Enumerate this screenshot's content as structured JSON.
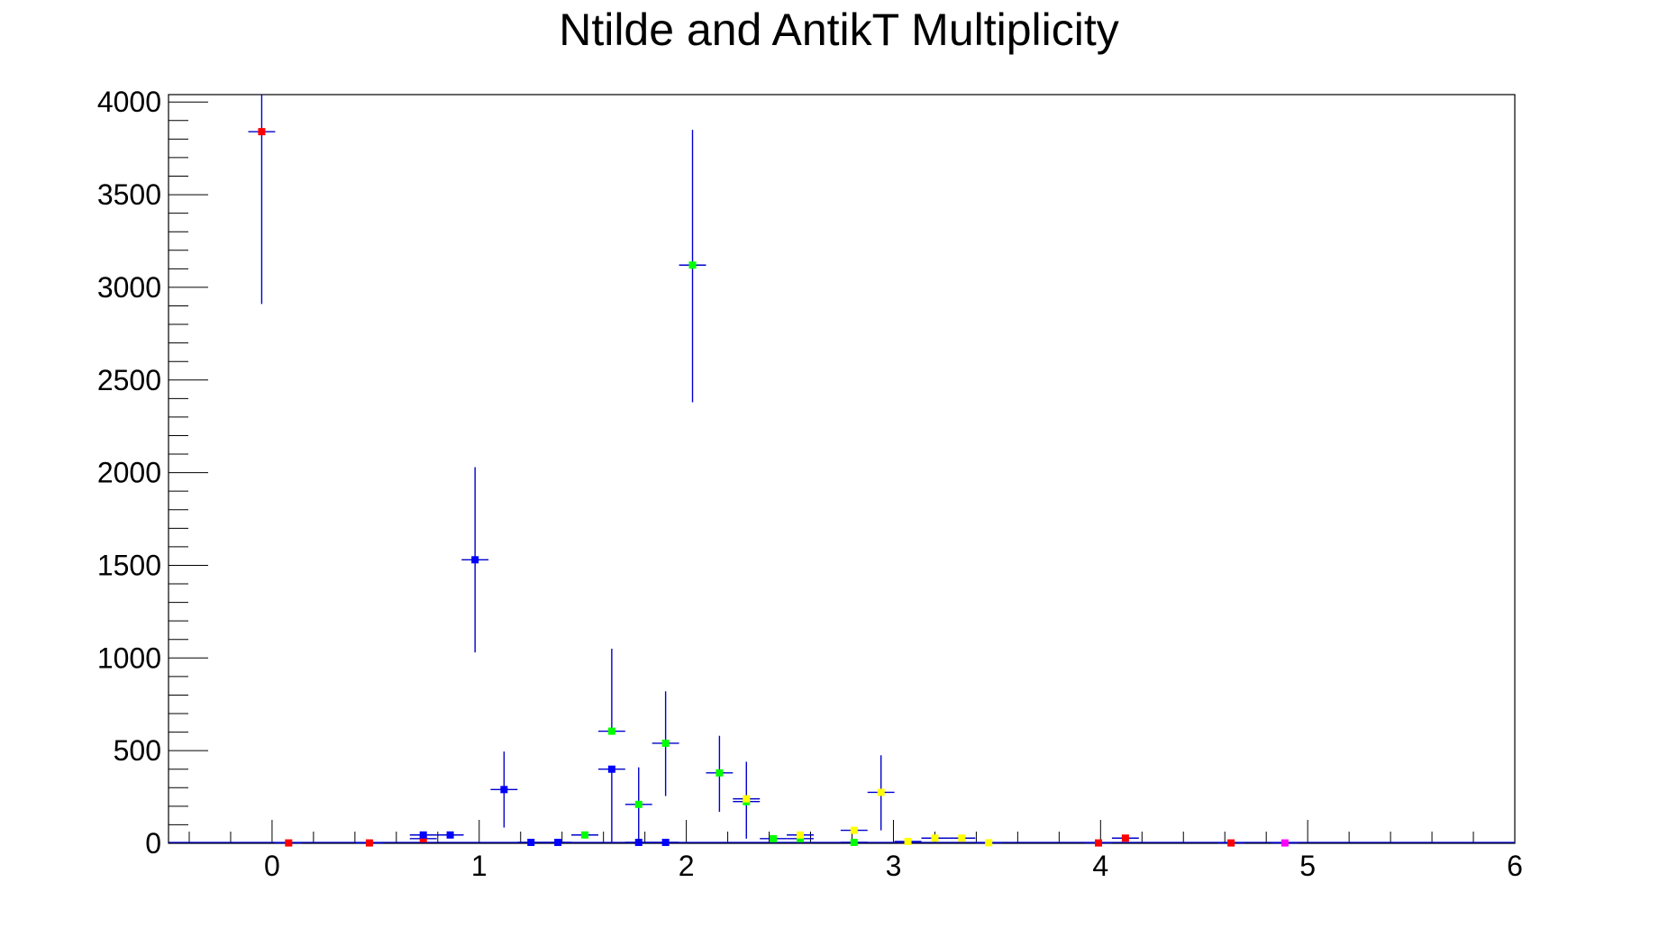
{
  "chart_data": {
    "type": "scatter",
    "title": "Ntilde and AntikT Multiplicity",
    "xlabel": "",
    "ylabel": "",
    "xlim": [
      -0.5,
      6
    ],
    "ylim": [
      0,
      4040
    ],
    "x_ticks": [
      0,
      1,
      2,
      3,
      4,
      5,
      6
    ],
    "y_ticks": [
      0,
      500,
      1000,
      1500,
      2000,
      2500,
      3000,
      3500,
      4000
    ],
    "grid": false,
    "legend": "none",
    "error_bar_color": "#0000cc",
    "series": [
      {
        "color": "#ff0000",
        "points": [
          {
            "x": -0.05,
            "y": 3840,
            "xerr": 0.065,
            "yerr_lo": 930,
            "yerr_hi": 200
          },
          {
            "x": 0.08,
            "y": 2,
            "xerr": 0.065,
            "yerr_lo": 0,
            "yerr_hi": 0
          },
          {
            "x": 0.47,
            "y": 2,
            "xerr": 0.065,
            "yerr_lo": 0,
            "yerr_hi": 0
          },
          {
            "x": 0.73,
            "y": 25,
            "xerr": 0.065,
            "yerr_lo": 0,
            "yerr_hi": 0
          },
          {
            "x": 3.99,
            "y": 2,
            "xerr": 0.065,
            "yerr_lo": 0,
            "yerr_hi": 0
          },
          {
            "x": 4.12,
            "y": 28,
            "xerr": 0.065,
            "yerr_lo": 0,
            "yerr_hi": 0
          },
          {
            "x": 4.63,
            "y": 2,
            "xerr": 0.065,
            "yerr_lo": 0,
            "yerr_hi": 0
          }
        ]
      },
      {
        "color": "#0000ff",
        "points": [
          {
            "x": 0.73,
            "y": 45,
            "xerr": 0.065,
            "yerr_lo": 0,
            "yerr_hi": 0
          },
          {
            "x": 0.86,
            "y": 45,
            "xerr": 0.065,
            "yerr_lo": 0,
            "yerr_hi": 0
          },
          {
            "x": 0.98,
            "y": 1530,
            "xerr": 0.065,
            "yerr_lo": 500,
            "yerr_hi": 500
          },
          {
            "x": 1.12,
            "y": 290,
            "xerr": 0.065,
            "yerr_lo": 205,
            "yerr_hi": 205
          },
          {
            "x": 1.25,
            "y": 5,
            "xerr": 0.065,
            "yerr_lo": 0,
            "yerr_hi": 0
          },
          {
            "x": 1.38,
            "y": 5,
            "xerr": 0.065,
            "yerr_lo": 0,
            "yerr_hi": 0
          },
          {
            "x": 1.64,
            "y": 400,
            "xerr": 0.065,
            "yerr_lo": 400,
            "yerr_hi": 0
          },
          {
            "x": 1.77,
            "y": 5,
            "xerr": 0.065,
            "yerr_lo": 0,
            "yerr_hi": 0
          },
          {
            "x": 1.9,
            "y": 5,
            "xerr": 0.065,
            "yerr_lo": 0,
            "yerr_hi": 0
          }
        ]
      },
      {
        "color": "#00ff00",
        "points": [
          {
            "x": 1.51,
            "y": 45,
            "xerr": 0.065,
            "yerr_lo": 0,
            "yerr_hi": 0
          },
          {
            "x": 1.64,
            "y": 605,
            "xerr": 0.065,
            "yerr_lo": 0,
            "yerr_hi": 445
          },
          {
            "x": 1.77,
            "y": 210,
            "xerr": 0.065,
            "yerr_lo": 210,
            "yerr_hi": 200
          },
          {
            "x": 1.9,
            "y": 540,
            "xerr": 0.065,
            "yerr_lo": 285,
            "yerr_hi": 280
          },
          {
            "x": 2.03,
            "y": 3120,
            "xerr": 0.065,
            "yerr_lo": 740,
            "yerr_hi": 730
          },
          {
            "x": 2.16,
            "y": 380,
            "xerr": 0.065,
            "yerr_lo": 210,
            "yerr_hi": 200
          },
          {
            "x": 2.29,
            "y": 225,
            "xerr": 0.065,
            "yerr_lo": 200,
            "yerr_hi": 215
          },
          {
            "x": 2.42,
            "y": 25,
            "xerr": 0.065,
            "yerr_lo": 0,
            "yerr_hi": 0
          },
          {
            "x": 2.55,
            "y": 25,
            "xerr": 0.065,
            "yerr_lo": 0,
            "yerr_hi": 0
          },
          {
            "x": 2.81,
            "y": 5,
            "xerr": 0.065,
            "yerr_lo": 0,
            "yerr_hi": 0
          }
        ]
      },
      {
        "color": "#ffff00",
        "points": [
          {
            "x": 2.29,
            "y": 240,
            "xerr": 0.065,
            "yerr_lo": 0,
            "yerr_hi": 0
          },
          {
            "x": 2.55,
            "y": 45,
            "xerr": 0.065,
            "yerr_lo": 0,
            "yerr_hi": 0
          },
          {
            "x": 2.81,
            "y": 70,
            "xerr": 0.065,
            "yerr_lo": 0,
            "yerr_hi": 0
          },
          {
            "x": 2.94,
            "y": 275,
            "xerr": 0.065,
            "yerr_lo": 205,
            "yerr_hi": 200
          },
          {
            "x": 3.07,
            "y": 10,
            "xerr": 0.065,
            "yerr_lo": 0,
            "yerr_hi": 0
          },
          {
            "x": 3.2,
            "y": 28,
            "xerr": 0.065,
            "yerr_lo": 0,
            "yerr_hi": 0
          },
          {
            "x": 3.33,
            "y": 28,
            "xerr": 0.065,
            "yerr_lo": 0,
            "yerr_hi": 0
          },
          {
            "x": 3.46,
            "y": 3,
            "xerr": 0.065,
            "yerr_lo": 0,
            "yerr_hi": 0
          }
        ]
      },
      {
        "color": "#ff00ff",
        "points": [
          {
            "x": 4.89,
            "y": 2,
            "xerr": 0.065,
            "yerr_lo": 0,
            "yerr_hi": 0
          }
        ]
      }
    ]
  }
}
